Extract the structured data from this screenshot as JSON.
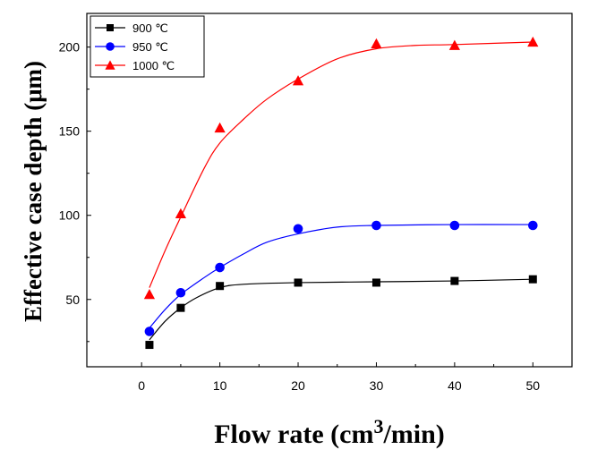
{
  "chart_data": {
    "type": "scatter",
    "title": "",
    "xlabel_prefix": "Flow rate (cm",
    "xlabel_sup": "3",
    "xlabel_suffix": "/min)",
    "ylabel": "Effective case depth (μm)",
    "xlim": [
      -7,
      55
    ],
    "ylim": [
      10,
      220
    ],
    "xticks": [
      "0",
      "10",
      "20",
      "30",
      "40",
      "50"
    ],
    "yticks": [
      "50",
      "100",
      "150",
      "200"
    ],
    "legend_position": "top-left",
    "series": [
      {
        "name": "900 ℃",
        "marker": "square",
        "color": "#000000",
        "x": [
          1,
          5,
          10,
          20,
          30,
          40,
          50
        ],
        "y": [
          23,
          45,
          58,
          60,
          60,
          61,
          62
        ],
        "fit": [
          [
            1,
            26
          ],
          [
            3,
            37
          ],
          [
            5,
            45
          ],
          [
            7,
            51
          ],
          [
            10,
            57
          ],
          [
            13,
            59
          ],
          [
            20,
            60
          ],
          [
            30,
            60.5
          ],
          [
            40,
            61
          ],
          [
            50,
            62
          ]
        ]
      },
      {
        "name": "950 ℃",
        "marker": "circle",
        "color": "#0000ff",
        "x": [
          1,
          5,
          10,
          20,
          30,
          40,
          50
        ],
        "y": [
          31,
          54,
          69,
          92,
          94,
          94,
          94
        ],
        "fit": [
          [
            1,
            33
          ],
          [
            3,
            44
          ],
          [
            5,
            53
          ],
          [
            8,
            63
          ],
          [
            10,
            69
          ],
          [
            13,
            77
          ],
          [
            16,
            84
          ],
          [
            20,
            89
          ],
          [
            25,
            93
          ],
          [
            30,
            94
          ],
          [
            40,
            94.5
          ],
          [
            50,
            94.5
          ]
        ]
      },
      {
        "name": "1000 ℃",
        "marker": "triangle",
        "color": "#ff0000",
        "x": [
          1,
          5,
          10,
          20,
          30,
          40,
          50
        ],
        "y": [
          53,
          101,
          152,
          180,
          202,
          201,
          203
        ],
        "fit": [
          [
            1,
            57
          ],
          [
            3,
            79
          ],
          [
            5,
            99
          ],
          [
            8,
            128
          ],
          [
            10,
            143
          ],
          [
            13,
            157
          ],
          [
            16,
            169
          ],
          [
            20,
            181
          ],
          [
            25,
            193
          ],
          [
            30,
            199
          ],
          [
            35,
            201
          ],
          [
            40,
            201.5
          ],
          [
            50,
            203
          ]
        ]
      }
    ]
  }
}
